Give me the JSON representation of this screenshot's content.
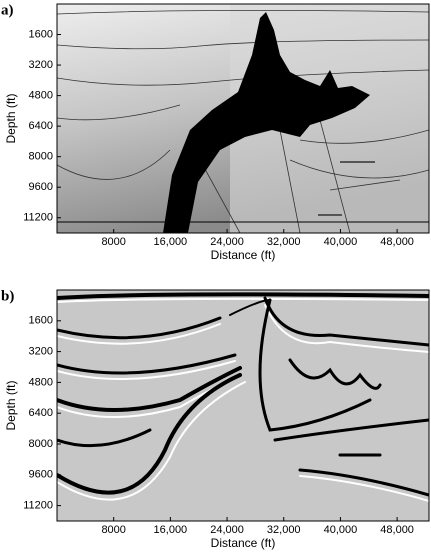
{
  "chart_data": [
    {
      "type": "image",
      "panel_label": "a)",
      "xlabel": "Distance (ft)",
      "ylabel": "Depth (ft)",
      "xlim": [
        0,
        52500
      ],
      "ylim": [
        0,
        12000
      ],
      "xticks": [
        8000,
        {
          "value": 16000,
          "label": "16,000"
        },
        {
          "value": 24000,
          "label": "24,000"
        },
        {
          "value": 32000,
          "label": "32,000"
        },
        {
          "value": 40000,
          "label": "40,000"
        },
        {
          "value": 48000,
          "label": "48,000"
        }
      ],
      "yticks": [
        1600,
        3200,
        4800,
        6400,
        8000,
        9600,
        11200
      ]
    },
    {
      "type": "image",
      "panel_label": "b)",
      "xlabel": "Distance (ft)",
      "ylabel": "Depth (ft)",
      "xlim": [
        0,
        52500
      ],
      "ylim": [
        0,
        12000
      ],
      "xticks": [
        8000,
        {
          "value": 16000,
          "label": "16,000"
        },
        {
          "value": 24000,
          "label": "24,000"
        },
        {
          "value": 32000,
          "label": "32,000"
        },
        {
          "value": 40000,
          "label": "40,000"
        },
        {
          "value": 48000,
          "label": "48,000"
        }
      ],
      "yticks": [
        1600,
        3200,
        4800,
        6400,
        8000,
        9600,
        11200
      ]
    }
  ]
}
